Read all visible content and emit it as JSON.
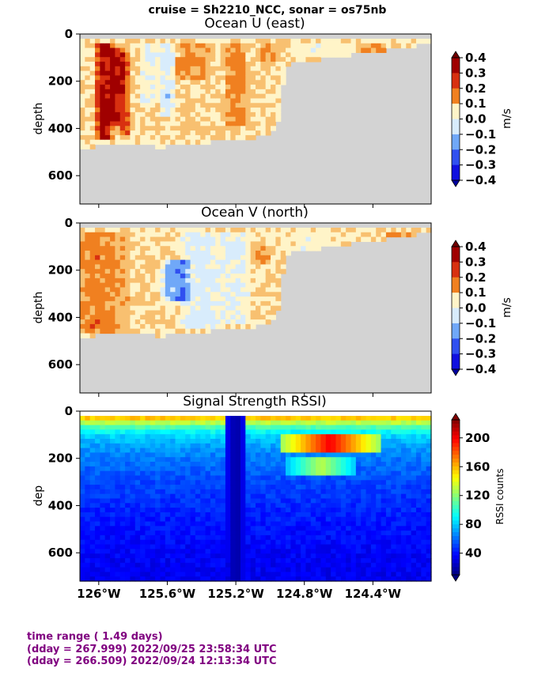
{
  "suptitle": "cruise = Sh2210_NCC,  sonar = os75nb",
  "footer": {
    "line1": "time range ( 1.49 days)",
    "line2": "(dday = 267.999) 2022/09/25 23:58:34 UTC",
    "line3": "(dday = 266.509) 2022/09/24 12:13:34 UTC"
  },
  "colors": {
    "land_gray": "#d3d3d3",
    "footer_text": "#800080",
    "vel_levels": [
      "#1010e0",
      "#3050f0",
      "#70a8f8",
      "#d8ecfc",
      "#fff4c8",
      "#f8c070",
      "#f08020",
      "#d83010",
      "#a00000"
    ],
    "vel_under": "#0000a0",
    "vel_over": "#700000"
  },
  "chart_data": [
    {
      "type": "heatmap",
      "title": "Ocean U (east)",
      "ylabel": "depth",
      "xlabel": "",
      "ylim": [
        720,
        0
      ],
      "xlim": [
        -126.11,
        -124.06
      ],
      "yticks": [
        0,
        200,
        400,
        600
      ],
      "xticks": [
        -126.0,
        -125.6,
        -125.2,
        -124.8,
        -124.4
      ],
      "xtick_labels": [],
      "colorbar": {
        "label": "m/s",
        "ticks": [
          0.4,
          0.3,
          0.2,
          0.1,
          0.0,
          -0.1,
          -0.2,
          -0.3,
          -0.4
        ],
        "tick_labels": [
          "0.4",
          "0.3",
          "0.2",
          "0.1",
          "0.0",
          "−0.1",
          "−0.2",
          "−0.3",
          "−0.4"
        ],
        "range": [
          -0.4,
          0.4
        ],
        "extend": "both"
      },
      "bottom_depth_profile": {
        "lon": [
          -126.11,
          -126.05,
          -125.95,
          -125.8,
          -125.65,
          -125.55,
          -125.45,
          -125.3,
          -125.15,
          -125.0,
          -124.95,
          -124.91,
          -124.06
        ],
        "depth": [
          490,
          470,
          455,
          455,
          470,
          462,
          455,
          445,
          435,
          420,
          355,
          120,
          30
        ]
      },
      "features": [
        {
          "lon": -125.97,
          "depth_top": 30,
          "depth_bottom": 440,
          "value": 0.35,
          "width": 0.06
        },
        {
          "lon": -125.9,
          "depth_top": 60,
          "depth_bottom": 380,
          "value": 0.28,
          "width": 0.05
        },
        {
          "lon": -125.85,
          "depth_top": 80,
          "depth_bottom": 420,
          "value": 0.2,
          "width": 0.05
        },
        {
          "lon": -125.7,
          "depth_top": 40,
          "depth_bottom": 300,
          "value": -0.1,
          "width": 0.08
        },
        {
          "lon": -125.6,
          "depth_top": 30,
          "depth_bottom": 350,
          "value": -0.15,
          "width": 0.05
        },
        {
          "lon": -125.45,
          "depth_top": 30,
          "depth_bottom": 200,
          "value": 0.12,
          "width": 0.12
        },
        {
          "lon": -125.2,
          "depth_top": 30,
          "depth_bottom": 380,
          "value": 0.15,
          "width": 0.08
        },
        {
          "lon": -125.0,
          "depth_top": 30,
          "depth_bottom": 120,
          "value": 0.1,
          "width": 0.08
        },
        {
          "lon": -124.7,
          "depth_top": 30,
          "depth_bottom": 100,
          "value": -0.08,
          "width": 0.2
        },
        {
          "lon": -124.4,
          "depth_top": 30,
          "depth_bottom": 80,
          "value": 0.12,
          "width": 0.1
        }
      ]
    },
    {
      "type": "heatmap",
      "title": "Ocean V (north)",
      "ylabel": "depth",
      "xlabel": "",
      "ylim": [
        720,
        0
      ],
      "xlim": [
        -126.11,
        -124.06
      ],
      "yticks": [
        0,
        200,
        400,
        600
      ],
      "xticks": [
        -126.0,
        -125.6,
        -125.2,
        -124.8,
        -124.4
      ],
      "xtick_labels": [],
      "colorbar": {
        "label": "m/s",
        "ticks": [
          0.4,
          0.3,
          0.2,
          0.1,
          0.0,
          -0.1,
          -0.2,
          -0.3,
          -0.4
        ],
        "tick_labels": [
          "0.4",
          "0.3",
          "0.2",
          "0.1",
          "0.0",
          "−0.1",
          "−0.2",
          "−0.3",
          "−0.4"
        ],
        "range": [
          -0.4,
          0.4
        ],
        "extend": "both"
      },
      "bottom_depth_profile": {
        "lon": [
          -126.11,
          -126.05,
          -125.95,
          -125.8,
          -125.65,
          -125.55,
          -125.45,
          -125.3,
          -125.15,
          -125.0,
          -124.95,
          -124.91,
          -124.06
        ],
        "depth": [
          490,
          470,
          455,
          455,
          470,
          462,
          455,
          445,
          435,
          420,
          355,
          120,
          30
        ]
      },
      "features": [
        {
          "lon": -126.0,
          "depth_top": 30,
          "depth_bottom": 470,
          "value": 0.15,
          "width": 0.2
        },
        {
          "lon": -125.55,
          "depth_top": 150,
          "depth_bottom": 330,
          "value": -0.25,
          "width": 0.1
        },
        {
          "lon": -125.4,
          "depth_top": 30,
          "depth_bottom": 440,
          "value": -0.15,
          "width": 0.15
        },
        {
          "lon": -125.2,
          "depth_top": 30,
          "depth_bottom": 420,
          "value": -0.12,
          "width": 0.1
        },
        {
          "lon": -125.05,
          "depth_top": 100,
          "depth_bottom": 180,
          "value": 0.15,
          "width": 0.06
        },
        {
          "lon": -124.8,
          "depth_top": 30,
          "depth_bottom": 120,
          "value": -0.05,
          "width": 0.25
        },
        {
          "lon": -124.2,
          "depth_top": 30,
          "depth_bottom": 80,
          "value": 0.1,
          "width": 0.15
        }
      ]
    },
    {
      "type": "heatmap",
      "title": "Signal Strength RSSI)",
      "ylabel": "dep",
      "xlabel": "",
      "ylim": [
        720,
        0
      ],
      "xlim": [
        -126.11,
        -124.06
      ],
      "yticks": [
        0,
        200,
        400,
        600
      ],
      "xticks": [
        -126.0,
        -125.6,
        -125.2,
        -124.8,
        -124.4
      ],
      "xtick_labels": [
        "126°W",
        "125.6°W",
        "125.2°W",
        "124.8°W",
        "124.4°W"
      ],
      "colorbar": {
        "label": "RSSI counts",
        "ticks": [
          200,
          160,
          120,
          80,
          40
        ],
        "tick_labels": [
          "200",
          "160",
          "120",
          "80",
          "40"
        ],
        "range": [
          10,
          225
        ],
        "extend": "both"
      },
      "profile": {
        "depth": [
          20,
          40,
          60,
          80,
          110,
          150,
          200,
          300,
          400,
          500,
          600,
          720
        ],
        "rssi": [
          170,
          140,
          115,
          95,
          80,
          70,
          62,
          52,
          45,
          40,
          36,
          33
        ]
      },
      "features": [
        {
          "lon": -124.65,
          "depth": 130,
          "value": 200,
          "width": 0.3
        },
        {
          "lon": -124.7,
          "depth": 230,
          "value": 130,
          "width": 0.2
        },
        {
          "lon": -125.2,
          "depth_top": 20,
          "depth_bottom": 720,
          "value": 15,
          "width": 0.05
        }
      ]
    }
  ]
}
